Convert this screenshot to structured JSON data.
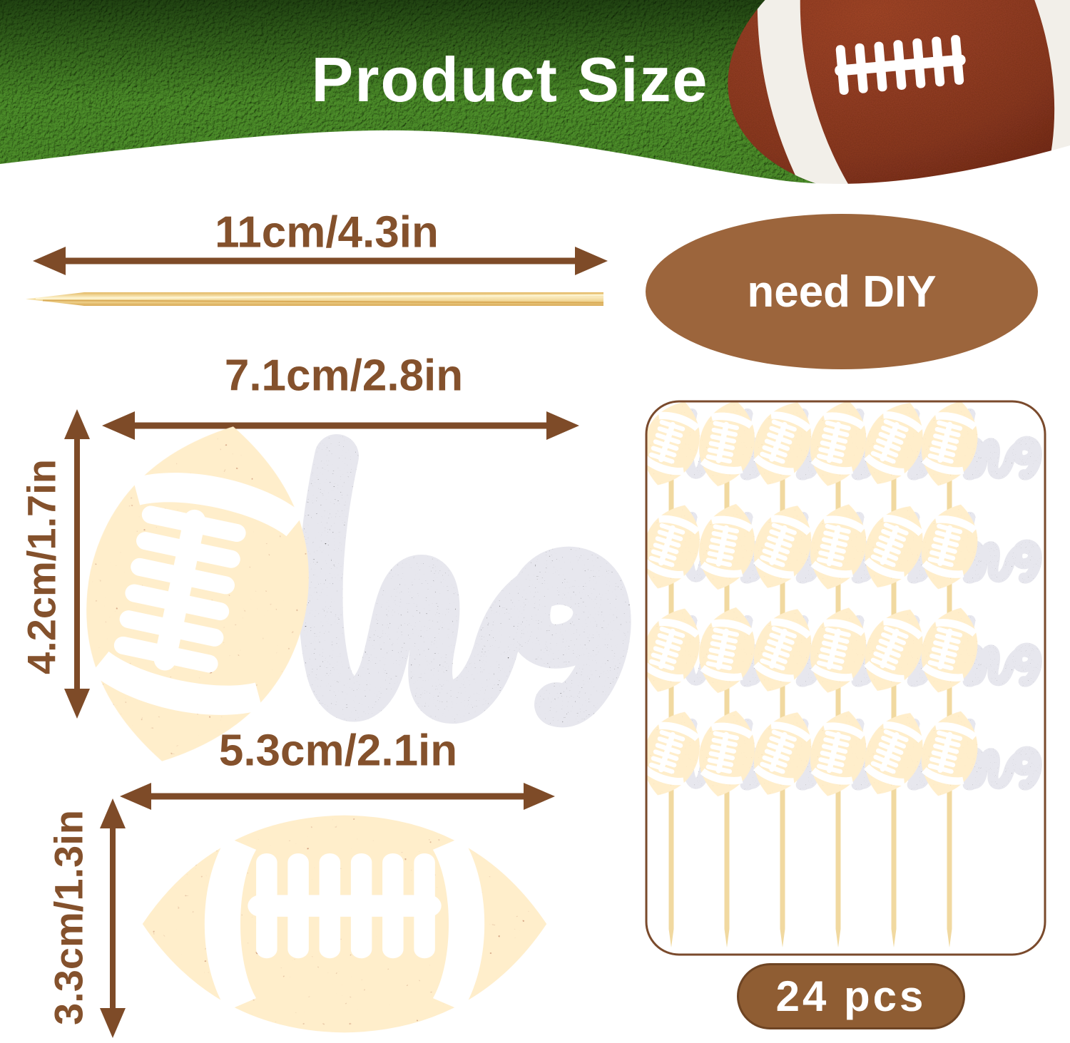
{
  "banner": {
    "title": "Product Size"
  },
  "callouts": {
    "need_diy": "need DIY",
    "pieces": "24 pcs"
  },
  "measurements": {
    "pick_length": "11cm/4.3in",
    "one_topper_width": "7.1cm/2.8in",
    "one_topper_height": "4.2cm/1.7in",
    "football_topper_width": "5.3cm/2.1in",
    "football_topper_height": "3.3cm/1.3in"
  },
  "topper": {
    "word": "one",
    "script_part": "ne"
  },
  "grid": {
    "rows": 4,
    "columns": 6,
    "total_pieces": 24
  },
  "colors": {
    "grass_green": "#3f7c22",
    "measure_brown": "#7e4b28",
    "label_brown": "#84512c",
    "oval_brown": "#9c653c",
    "pill_brown": "#8f5d33",
    "glitter_orange": "#b85c24",
    "glitter_black": "#2e2c2c",
    "bamboo": "#f1d9a0",
    "photo_ball_red": "#8c3920",
    "panel_border": "#7a4a2c"
  }
}
